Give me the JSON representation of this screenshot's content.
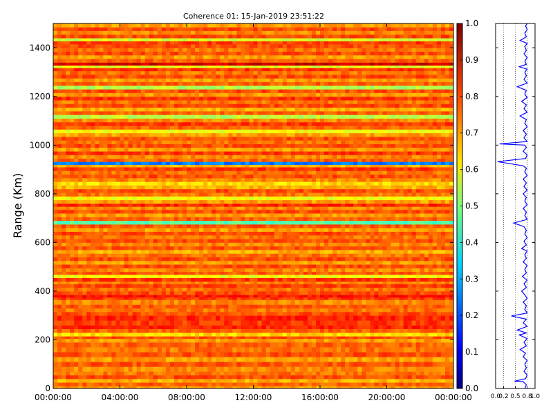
{
  "chart_data": [
    {
      "type": "heatmap",
      "title": "Coherence 01: 15-Jan-2019 23:51:22",
      "xlabel": "",
      "ylabel": "Range (Km)",
      "x_ticks": [
        "00:00:00",
        "04:00:00",
        "08:00:00",
        "12:00:00",
        "16:00:00",
        "20:00:00",
        "00:00:00"
      ],
      "y_ticks": [
        0,
        200,
        400,
        600,
        800,
        1000,
        1200,
        1400
      ],
      "ylim": [
        0,
        1500
      ],
      "colorscale": "jet",
      "zlim": [
        0.0,
        1.0
      ],
      "colorbar_ticks": [
        "0.0",
        "0.1",
        "0.2",
        "0.3",
        "0.4",
        "0.5",
        "0.6",
        "0.7",
        "0.8",
        "0.9",
        "1.0"
      ],
      "range_bands": [
        [
          0,
          10,
          0.72
        ],
        [
          10,
          25,
          0.78
        ],
        [
          25,
          40,
          0.7
        ],
        [
          40,
          55,
          0.8
        ],
        [
          55,
          70,
          0.76
        ],
        [
          70,
          90,
          0.74
        ],
        [
          90,
          110,
          0.79
        ],
        [
          110,
          130,
          0.72
        ],
        [
          130,
          150,
          0.8
        ],
        [
          150,
          170,
          0.76
        ],
        [
          170,
          190,
          0.78
        ],
        [
          190,
          205,
          0.72
        ],
        [
          205,
          215,
          0.8
        ],
        [
          215,
          230,
          0.66
        ],
        [
          230,
          245,
          0.78
        ],
        [
          245,
          260,
          0.84
        ],
        [
          260,
          280,
          0.82
        ],
        [
          280,
          300,
          0.84
        ],
        [
          300,
          315,
          0.8
        ],
        [
          315,
          330,
          0.76
        ],
        [
          330,
          345,
          0.79
        ],
        [
          345,
          365,
          0.74
        ],
        [
          365,
          375,
          0.82
        ],
        [
          375,
          385,
          0.86
        ],
        [
          385,
          400,
          0.8
        ],
        [
          400,
          415,
          0.76
        ],
        [
          415,
          430,
          0.81
        ],
        [
          430,
          440,
          0.74
        ],
        [
          440,
          455,
          0.82
        ],
        [
          455,
          468,
          0.62
        ],
        [
          468,
          480,
          0.79
        ],
        [
          480,
          495,
          0.74
        ],
        [
          495,
          510,
          0.8
        ],
        [
          510,
          525,
          0.72
        ],
        [
          525,
          540,
          0.8
        ],
        [
          540,
          555,
          0.76
        ],
        [
          555,
          570,
          0.7
        ],
        [
          570,
          585,
          0.79
        ],
        [
          585,
          600,
          0.74
        ],
        [
          600,
          615,
          0.8
        ],
        [
          615,
          630,
          0.76
        ],
        [
          630,
          645,
          0.8
        ],
        [
          645,
          660,
          0.72
        ],
        [
          660,
          675,
          0.79
        ],
        [
          675,
          690,
          0.46
        ],
        [
          690,
          705,
          0.78
        ],
        [
          705,
          720,
          0.72
        ],
        [
          720,
          735,
          0.8
        ],
        [
          735,
          748,
          0.74
        ],
        [
          748,
          760,
          0.84
        ],
        [
          760,
          775,
          0.72
        ],
        [
          775,
          790,
          0.62
        ],
        [
          790,
          805,
          0.76
        ],
        [
          805,
          820,
          0.8
        ],
        [
          820,
          835,
          0.7
        ],
        [
          835,
          850,
          0.66
        ],
        [
          850,
          865,
          0.74
        ],
        [
          865,
          880,
          0.8
        ],
        [
          880,
          895,
          0.76
        ],
        [
          895,
          910,
          0.82
        ],
        [
          910,
          920,
          0.7
        ],
        [
          920,
          932,
          0.25
        ],
        [
          932,
          945,
          0.78
        ],
        [
          945,
          960,
          0.74
        ],
        [
          960,
          975,
          0.82
        ],
        [
          975,
          990,
          0.72
        ],
        [
          990,
          1005,
          0.8
        ],
        [
          1005,
          1020,
          0.76
        ],
        [
          1020,
          1035,
          0.8
        ],
        [
          1035,
          1050,
          0.72
        ],
        [
          1050,
          1065,
          0.62
        ],
        [
          1065,
          1080,
          0.78
        ],
        [
          1080,
          1095,
          0.82
        ],
        [
          1095,
          1110,
          0.74
        ],
        [
          1110,
          1125,
          0.56
        ],
        [
          1125,
          1140,
          0.78
        ],
        [
          1140,
          1155,
          0.7
        ],
        [
          1155,
          1170,
          0.8
        ],
        [
          1170,
          1185,
          0.76
        ],
        [
          1185,
          1200,
          0.82
        ],
        [
          1200,
          1215,
          0.72
        ],
        [
          1215,
          1230,
          0.8
        ],
        [
          1230,
          1245,
          0.55
        ],
        [
          1245,
          1260,
          0.78
        ],
        [
          1260,
          1275,
          0.72
        ],
        [
          1275,
          1290,
          0.8
        ],
        [
          1290,
          1305,
          0.76
        ],
        [
          1305,
          1318,
          0.82
        ],
        [
          1318,
          1328,
          0.6
        ],
        [
          1328,
          1340,
          0.92
        ],
        [
          1340,
          1355,
          0.78
        ],
        [
          1355,
          1370,
          0.72
        ],
        [
          1370,
          1385,
          0.8
        ],
        [
          1385,
          1400,
          0.76
        ],
        [
          1400,
          1415,
          0.8
        ],
        [
          1415,
          1428,
          0.82
        ],
        [
          1428,
          1440,
          0.58
        ],
        [
          1440,
          1455,
          0.8
        ],
        [
          1455,
          1470,
          0.74
        ],
        [
          1470,
          1485,
          0.8
        ],
        [
          1485,
          1500,
          0.72
        ]
      ]
    },
    {
      "type": "line",
      "title": "",
      "xlabel": "",
      "ylabel": "",
      "x_ticks": [
        "0.0",
        "0.2",
        "0.5",
        "0.8",
        "1.0"
      ],
      "xlim": [
        0.0,
        1.0
      ],
      "ylim": [
        0,
        1500
      ],
      "series": [
        {
          "color": "#0000ff",
          "points": [
            [
              0.74,
              0
            ],
            [
              0.78,
              15
            ],
            [
              0.7,
              28
            ],
            [
              0.48,
              30
            ],
            [
              0.76,
              40
            ],
            [
              0.8,
              55
            ],
            [
              0.72,
              70
            ],
            [
              0.78,
              85
            ],
            [
              0.74,
              100
            ],
            [
              0.8,
              115
            ],
            [
              0.7,
              130
            ],
            [
              0.76,
              145
            ],
            [
              0.62,
              160
            ],
            [
              0.78,
              175
            ],
            [
              0.72,
              190
            ],
            [
              0.8,
              205
            ],
            [
              0.6,
              220
            ],
            [
              0.78,
              228
            ],
            [
              0.55,
              240
            ],
            [
              0.8,
              255
            ],
            [
              0.7,
              270
            ],
            [
              0.78,
              285
            ],
            [
              0.4,
              298
            ],
            [
              0.8,
              310
            ],
            [
              0.74,
              325
            ],
            [
              0.78,
              340
            ],
            [
              0.7,
              355
            ],
            [
              0.8,
              370
            ],
            [
              0.74,
              385
            ],
            [
              0.66,
              400
            ],
            [
              0.78,
              415
            ],
            [
              0.72,
              430
            ],
            [
              0.8,
              445
            ],
            [
              0.68,
              460
            ],
            [
              0.78,
              475
            ],
            [
              0.74,
              490
            ],
            [
              0.8,
              505
            ],
            [
              0.7,
              520
            ],
            [
              0.78,
              535
            ],
            [
              0.74,
              550
            ],
            [
              0.8,
              565
            ],
            [
              0.66,
              575
            ],
            [
              0.78,
              590
            ],
            [
              0.72,
              605
            ],
            [
              0.8,
              620
            ],
            [
              0.74,
              635
            ],
            [
              0.78,
              650
            ],
            [
              0.72,
              665
            ],
            [
              0.46,
              680
            ],
            [
              0.8,
              695
            ],
            [
              0.74,
              710
            ],
            [
              0.78,
              725
            ],
            [
              0.7,
              740
            ],
            [
              0.8,
              755
            ],
            [
              0.74,
              770
            ],
            [
              0.78,
              785
            ],
            [
              0.7,
              800
            ],
            [
              0.8,
              815
            ],
            [
              0.72,
              830
            ],
            [
              0.78,
              845
            ],
            [
              0.7,
              860
            ],
            [
              0.8,
              875
            ],
            [
              0.74,
              890
            ],
            [
              0.78,
              905
            ],
            [
              0.7,
              915
            ],
            [
              0.05,
              932
            ],
            [
              0.76,
              945
            ],
            [
              0.8,
              960
            ],
            [
              0.7,
              975
            ],
            [
              0.78,
              990
            ],
            [
              0.74,
              1000
            ],
            [
              0.1,
              1005
            ],
            [
              0.8,
              1015
            ],
            [
              0.72,
              1030
            ],
            [
              0.78,
              1045
            ],
            [
              0.7,
              1060
            ],
            [
              0.8,
              1075
            ],
            [
              0.74,
              1090
            ],
            [
              0.78,
              1105
            ],
            [
              0.62,
              1120
            ],
            [
              0.8,
              1135
            ],
            [
              0.72,
              1150
            ],
            [
              0.78,
              1165
            ],
            [
              0.66,
              1180
            ],
            [
              0.8,
              1195
            ],
            [
              0.74,
              1210
            ],
            [
              0.78,
              1225
            ],
            [
              0.55,
              1240
            ],
            [
              0.8,
              1255
            ],
            [
              0.72,
              1270
            ],
            [
              0.78,
              1285
            ],
            [
              0.74,
              1300
            ],
            [
              0.8,
              1312
            ],
            [
              0.6,
              1322
            ],
            [
              0.78,
              1332
            ],
            [
              0.74,
              1345
            ],
            [
              0.8,
              1360
            ],
            [
              0.72,
              1375
            ],
            [
              0.78,
              1390
            ],
            [
              0.74,
              1405
            ],
            [
              0.8,
              1418
            ],
            [
              0.62,
              1430
            ],
            [
              0.78,
              1445
            ],
            [
              0.74,
              1460
            ],
            [
              0.8,
              1475
            ],
            [
              0.76,
              1490
            ],
            [
              0.8,
              1500
            ]
          ]
        }
      ],
      "grid": true
    }
  ]
}
